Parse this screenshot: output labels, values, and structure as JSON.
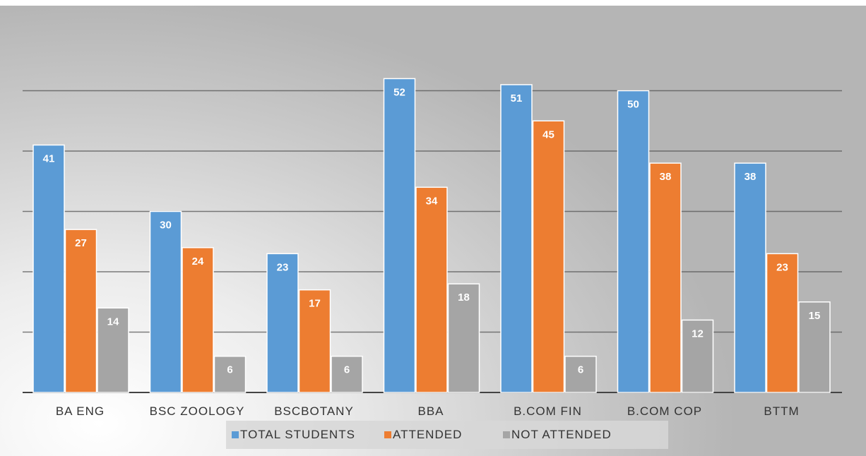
{
  "chart_data": {
    "type": "bar",
    "categories": [
      "BA ENG",
      "BSC ZOOLOGY",
      "BSCBOTANY",
      "BBA",
      "B.COM FIN",
      "B.COM COP",
      "BTTM"
    ],
    "series": [
      {
        "name": "TOTAL STUDENTS",
        "color": "#5b9bd5",
        "values": [
          41,
          30,
          23,
          52,
          51,
          50,
          38
        ]
      },
      {
        "name": "ATTENDED",
        "color": "#ed7d31",
        "values": [
          27,
          24,
          17,
          34,
          45,
          38,
          23
        ]
      },
      {
        "name": "NOT ATTENDED",
        "color": "#a5a5a5",
        "values": [
          14,
          6,
          6,
          18,
          6,
          12,
          15
        ]
      }
    ],
    "ylim": [
      0,
      60
    ],
    "grid": true,
    "legend_position": "bottom"
  }
}
